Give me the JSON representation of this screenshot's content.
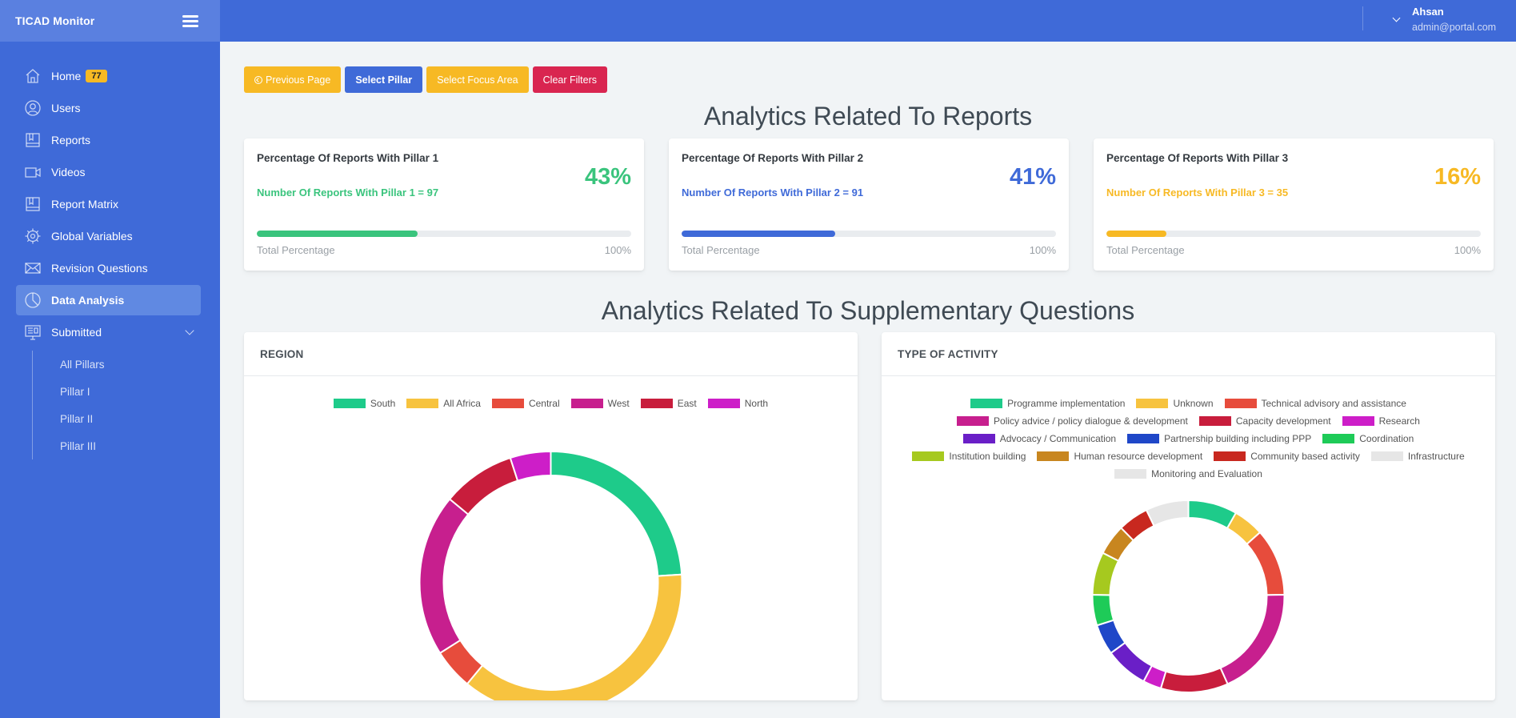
{
  "app": {
    "title": "TICAD Monitor"
  },
  "user": {
    "name": "Ahsan",
    "email": "admin@portal.com"
  },
  "sidebar": {
    "items": [
      {
        "label": "Home",
        "icon": "home-icon",
        "badge": "77"
      },
      {
        "label": "Users",
        "icon": "user-icon"
      },
      {
        "label": "Reports",
        "icon": "book-icon"
      },
      {
        "label": "Videos",
        "icon": "video-icon"
      },
      {
        "label": "Report Matrix",
        "icon": "book-icon"
      },
      {
        "label": "Global Variables",
        "icon": "gear-icon"
      },
      {
        "label": "Revision Questions",
        "icon": "mail-icon"
      },
      {
        "label": "Data Analysis",
        "icon": "pie-chart-icon",
        "active": true
      },
      {
        "label": "Submitted",
        "icon": "monitor-icon"
      }
    ],
    "submitted_children": [
      "All Pillars",
      "Pillar I",
      "Pillar II",
      "Pillar III"
    ]
  },
  "toolbar": {
    "previous_label": "Previous Page",
    "select_pillar_label": "Select Pillar",
    "select_focus_label": "Select Focus Area",
    "clear_label": "Clear Filters"
  },
  "sections": {
    "reports_title": "Analytics Related To Reports",
    "supplementary_title": "Analytics Related To Supplementary Questions"
  },
  "pillar_cards": [
    {
      "title": "Percentage Of Reports With Pillar 1",
      "subtitle": "Number Of Reports With Pillar 1 = 97",
      "value": "43%",
      "fraction": 0.43,
      "color": "#3ac47d",
      "total_label": "Total Percentage",
      "total_value": "100%"
    },
    {
      "title": "Percentage Of Reports With Pillar 2",
      "subtitle": "Number Of Reports With Pillar 2 = 91",
      "value": "41%",
      "fraction": 0.41,
      "color": "#3f6ad8",
      "total_label": "Total Percentage",
      "total_value": "100%"
    },
    {
      "title": "Percentage Of Reports With Pillar 3",
      "subtitle": "Number Of Reports With Pillar 3 = 35",
      "value": "16%",
      "fraction": 0.16,
      "color": "#f7b924",
      "total_label": "Total Percentage",
      "total_value": "100%"
    }
  ],
  "chart_data": [
    {
      "type": "pie",
      "title": "REGION",
      "labels": [
        "South",
        "All Africa",
        "Central",
        "West",
        "East",
        "North"
      ],
      "values": [
        24,
        37,
        5,
        20,
        9,
        5
      ],
      "colors": [
        "#1ecb8a",
        "#f7c33f",
        "#e74c3c",
        "#c71f8e",
        "#c81d3c",
        "#cd1ec8"
      ]
    },
    {
      "type": "pie",
      "title": "TYPE OF ACTIVITY",
      "labels": [
        "Programme implementation",
        "Unknown",
        "Technical advisory and assistance",
        "Policy advice / policy dialogue & development",
        "Capacity development",
        "Research",
        "Advocacy / Communication",
        "Partnership building including PPP",
        "Coordination",
        "Institution building",
        "Human resource development",
        "Community based activity",
        "Infrastructure",
        "Monitoring and Evaluation"
      ],
      "values": [
        8,
        5,
        11,
        18,
        11,
        3,
        7,
        5,
        5,
        7,
        5,
        5,
        0,
        7
      ],
      "colors": [
        "#1ecb8a",
        "#f7c33f",
        "#e74c3c",
        "#c71f8e",
        "#c81d3c",
        "#cd1ec8",
        "#6a1fc7",
        "#1f47c8",
        "#1ecb58",
        "#a6c91f",
        "#c8861f",
        "#c8281f",
        "#e6e6e6",
        "#e6e6e6"
      ]
    }
  ]
}
